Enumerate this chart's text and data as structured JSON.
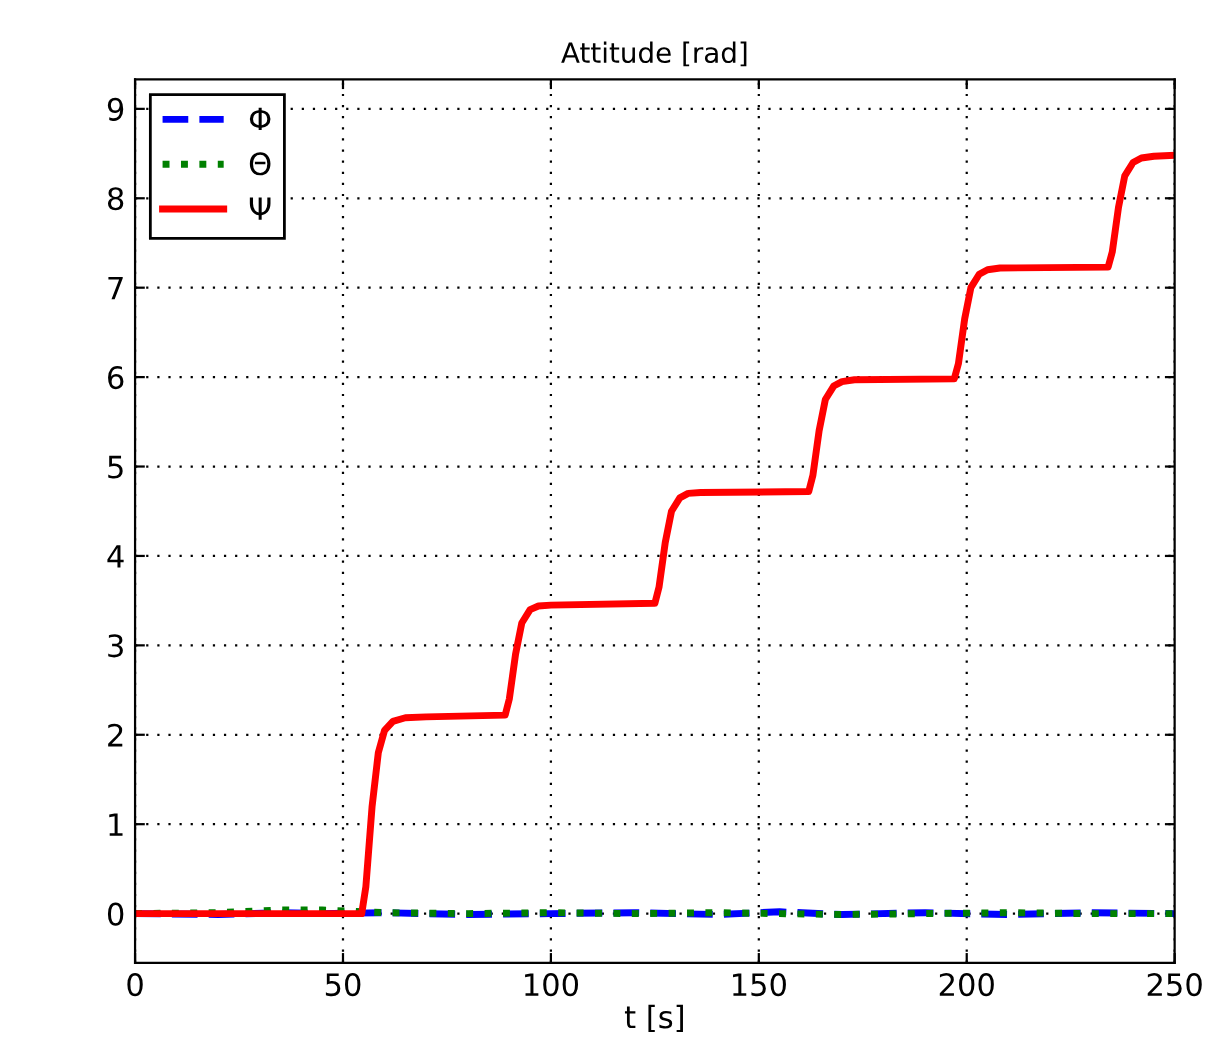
{
  "chart_data": {
    "type": "line",
    "title": "Attitude [rad]",
    "xlabel": "t [s]",
    "xlim": [
      0,
      250
    ],
    "ylim": [
      -0.55,
      9.33
    ],
    "xticks": [
      0,
      50,
      100,
      150,
      200,
      250
    ],
    "yticks": [
      0,
      1,
      2,
      3,
      4,
      5,
      6,
      7,
      8,
      9
    ],
    "grid": true,
    "legend": "top left",
    "series": [
      {
        "name": "Φ",
        "color": "#0000ff",
        "line_style": "dashed",
        "x": [
          0,
          20,
          35,
          45,
          60,
          80,
          100,
          120,
          140,
          155,
          170,
          190,
          210,
          230,
          250
        ],
        "values": [
          0,
          -0.01,
          0.01,
          0,
          0.01,
          -0.01,
          0,
          0.01,
          -0.01,
          0.02,
          -0.01,
          0.01,
          -0.01,
          0.01,
          0
        ]
      },
      {
        "name": "Θ",
        "color": "#008000",
        "line_style": "dotted",
        "x": [
          0,
          20,
          35,
          45,
          60,
          80,
          100,
          120,
          140,
          155,
          170,
          190,
          210,
          230,
          250
        ],
        "values": [
          0,
          0.01,
          0.04,
          0.04,
          0.01,
          0,
          0.01,
          0,
          0.01,
          0,
          -0.01,
          0,
          0.01,
          0,
          0
        ]
      },
      {
        "name": "Ψ",
        "color": "#ff0000",
        "line_style": "solid",
        "x": [
          0,
          54.5,
          55.5,
          57,
          58.5,
          60,
          62,
          65,
          70,
          89,
          90,
          91.5,
          93,
          95,
          97,
          100,
          125,
          126,
          127.5,
          129,
          131,
          133,
          136,
          162,
          163,
          164.5,
          166,
          168,
          170,
          173,
          197,
          198,
          199.5,
          201,
          203,
          205,
          208,
          234,
          235,
          236.5,
          238,
          240,
          242,
          245,
          250
        ],
        "values": [
          0,
          0,
          0.3,
          1.2,
          1.8,
          2.05,
          2.15,
          2.19,
          2.2,
          2.22,
          2.4,
          2.9,
          3.25,
          3.4,
          3.44,
          3.45,
          3.47,
          3.65,
          4.15,
          4.5,
          4.65,
          4.7,
          4.71,
          4.72,
          4.9,
          5.4,
          5.75,
          5.9,
          5.95,
          5.97,
          5.98,
          6.15,
          6.65,
          7.0,
          7.15,
          7.2,
          7.22,
          7.23,
          7.4,
          7.9,
          8.25,
          8.4,
          8.45,
          8.47,
          8.48
        ]
      }
    ]
  }
}
